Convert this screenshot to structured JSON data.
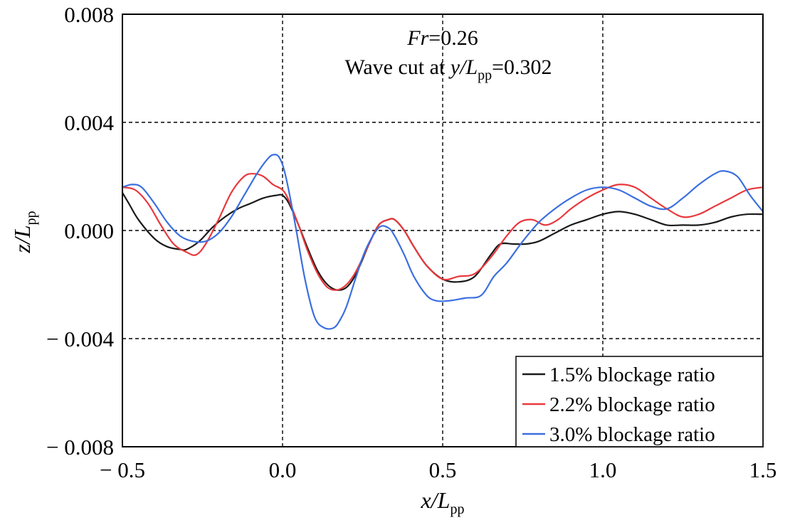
{
  "chart_data": {
    "type": "line",
    "annotation": {
      "line1": {
        "italic": "Fr",
        "rest": "=0.26"
      },
      "line2": {
        "prefix": "Wave cut at ",
        "var": "y/L",
        "sub": "pp",
        "suffix": "=0.302"
      }
    },
    "xlabel": {
      "var": "x/L",
      "sub": "pp"
    },
    "ylabel": {
      "var": "z/L",
      "sub": "pp"
    },
    "xlim": [
      -0.5,
      1.5
    ],
    "ylim": [
      -0.008,
      0.008
    ],
    "xticks": [
      -0.5,
      0.0,
      0.5,
      1.0,
      1.5
    ],
    "xtick_labels": [
      "− 0.5",
      "0.0",
      "0.5",
      "1.0",
      "1.5"
    ],
    "yticks": [
      -0.008,
      -0.004,
      0.0,
      0.004,
      0.008
    ],
    "ytick_labels": [
      "− 0.008",
      "− 0.004",
      "0.000",
      "0.004",
      "0.008"
    ],
    "grid": true,
    "legend_position": "bottom-right",
    "series": [
      {
        "name": "1.5% blockage ratio",
        "color": "#1a1a1a",
        "x": [
          -0.5,
          -0.48,
          -0.45,
          -0.4,
          -0.36,
          -0.32,
          -0.3,
          -0.26,
          -0.22,
          -0.18,
          -0.14,
          -0.1,
          -0.06,
          -0.02,
          0.0,
          0.02,
          0.05,
          0.08,
          0.11,
          0.14,
          0.17,
          0.2,
          0.23,
          0.27,
          0.3,
          0.33,
          0.35,
          0.38,
          0.41,
          0.45,
          0.5,
          0.55,
          0.6,
          0.65,
          0.68,
          0.72,
          0.76,
          0.8,
          0.85,
          0.9,
          0.95,
          1.0,
          1.05,
          1.1,
          1.15,
          1.2,
          1.25,
          1.3,
          1.35,
          1.4,
          1.45,
          1.5
        ],
        "y": [
          0.0014,
          0.001,
          0.0004,
          -0.0003,
          -0.0006,
          -0.0007,
          -0.0007,
          -0.0004,
          0.0001,
          0.0005,
          0.0008,
          0.001,
          0.0012,
          0.0013,
          0.0013,
          0.001,
          0.0002,
          -0.0007,
          -0.0015,
          -0.002,
          -0.0022,
          -0.0021,
          -0.0016,
          -0.0005,
          0.0002,
          0.0004,
          0.0004,
          0.0,
          -0.0006,
          -0.0013,
          -0.0018,
          -0.0019,
          -0.0017,
          -0.0009,
          -0.0005,
          -0.0005,
          -0.0005,
          -0.0004,
          -0.0001,
          0.0002,
          0.0004,
          0.0006,
          0.0007,
          0.0006,
          0.0004,
          0.0002,
          0.0002,
          0.0002,
          0.0003,
          0.0005,
          0.0006,
          0.0006
        ]
      },
      {
        "name": "2.2% blockage ratio",
        "color": "#e8383d",
        "x": [
          -0.5,
          -0.46,
          -0.42,
          -0.38,
          -0.34,
          -0.3,
          -0.27,
          -0.24,
          -0.2,
          -0.16,
          -0.12,
          -0.09,
          -0.06,
          -0.03,
          0.0,
          0.02,
          0.05,
          0.08,
          0.11,
          0.14,
          0.17,
          0.2,
          0.23,
          0.27,
          0.3,
          0.33,
          0.35,
          0.38,
          0.41,
          0.45,
          0.5,
          0.55,
          0.6,
          0.65,
          0.7,
          0.74,
          0.78,
          0.82,
          0.86,
          0.9,
          0.95,
          1.0,
          1.05,
          1.1,
          1.15,
          1.2,
          1.25,
          1.3,
          1.35,
          1.4,
          1.45,
          1.5
        ],
        "y": [
          0.0016,
          0.0015,
          0.001,
          0.0002,
          -0.0005,
          -0.0008,
          -0.0009,
          -0.0005,
          0.0004,
          0.0014,
          0.002,
          0.0021,
          0.002,
          0.0017,
          0.0015,
          0.0011,
          0.0002,
          -0.0008,
          -0.0016,
          -0.0021,
          -0.0022,
          -0.002,
          -0.0015,
          -0.0005,
          0.0002,
          0.0004,
          0.0004,
          0.0,
          -0.0006,
          -0.0013,
          -0.0018,
          -0.0017,
          -0.0016,
          -0.001,
          -0.0002,
          0.0003,
          0.0004,
          0.0002,
          0.0004,
          0.0008,
          0.0012,
          0.0015,
          0.0017,
          0.0016,
          0.0012,
          0.0008,
          0.0005,
          0.0006,
          0.0009,
          0.0012,
          0.0015,
          0.0016
        ]
      },
      {
        "name": "3.0% blockage ratio",
        "color": "#3b6fe0",
        "x": [
          -0.5,
          -0.47,
          -0.44,
          -0.4,
          -0.36,
          -0.32,
          -0.28,
          -0.24,
          -0.2,
          -0.16,
          -0.12,
          -0.08,
          -0.05,
          -0.03,
          -0.01,
          0.01,
          0.04,
          0.07,
          0.1,
          0.13,
          0.16,
          0.18,
          0.2,
          0.23,
          0.26,
          0.3,
          0.33,
          0.35,
          0.38,
          0.41,
          0.45,
          0.48,
          0.52,
          0.57,
          0.62,
          0.66,
          0.7,
          0.75,
          0.8,
          0.85,
          0.9,
          0.95,
          1.0,
          1.05,
          1.1,
          1.15,
          1.2,
          1.25,
          1.3,
          1.35,
          1.38,
          1.42,
          1.46,
          1.5
        ],
        "y": [
          0.0016,
          0.0017,
          0.0016,
          0.001,
          0.0003,
          -0.0002,
          -0.0004,
          -0.0004,
          -0.0001,
          0.0005,
          0.0013,
          0.0021,
          0.0026,
          0.0028,
          0.0027,
          0.002,
          0.0002,
          -0.0018,
          -0.0032,
          -0.0036,
          -0.0036,
          -0.0033,
          -0.0028,
          -0.0017,
          -0.0007,
          0.0001,
          0.0001,
          -0.0002,
          -0.0009,
          -0.0017,
          -0.0024,
          -0.0026,
          -0.0026,
          -0.0025,
          -0.0024,
          -0.0017,
          -0.0012,
          -0.0004,
          0.0003,
          0.0008,
          0.0012,
          0.0015,
          0.0016,
          0.0015,
          0.0012,
          0.0009,
          0.0008,
          0.0012,
          0.0017,
          0.0021,
          0.0022,
          0.002,
          0.0013,
          0.0007
        ]
      }
    ]
  }
}
